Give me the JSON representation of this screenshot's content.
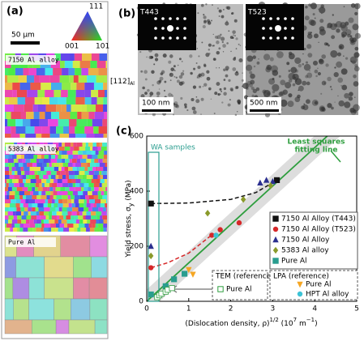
{
  "panel_a": {
    "label": "(a)",
    "ipf": {
      "top": "111",
      "left": "001",
      "right": "101"
    },
    "scale_bar": "50 μm",
    "maps": [
      "7150 Al alloy",
      "5383 Al alloy",
      "Pure Al"
    ]
  },
  "panel_b": {
    "label": "(b)",
    "zone_axis": "[112]",
    "zone_axis_sub": "Al",
    "images": [
      {
        "inset": "T443",
        "scale_bar": "100 nm"
      },
      {
        "inset": "T523",
        "scale_bar": "500 nm"
      }
    ]
  },
  "chart_data": {
    "type": "scatter",
    "panel_label": "(c)",
    "ylabel": [
      "Yield stress, σ",
      "y",
      " (MPa)"
    ],
    "xlabel": [
      "(Dislocation density, ρ)",
      "1/2",
      " (10",
      "7",
      " m",
      "−1",
      ")"
    ],
    "xlim": [
      0,
      5
    ],
    "xticks": [
      0,
      1,
      2,
      3,
      4,
      5
    ],
    "ylim": [
      0,
      600
    ],
    "yticks": [
      0,
      200,
      400,
      600
    ],
    "annotation": "WA samples",
    "fit_line": {
      "label": [
        "Least squares",
        "fitting line"
      ],
      "color": "#2e9e3e",
      "x": [
        0,
        4.3
      ],
      "y": [
        0,
        600
      ]
    },
    "curves": [
      {
        "color": "#111111",
        "x": [
          0.1,
          1,
          2,
          2.6,
          3.1
        ],
        "y": [
          355,
          357,
          370,
          395,
          440
        ]
      },
      {
        "color": "#d62728",
        "x": [
          0.1,
          0.5,
          1.0,
          1.5
        ],
        "y": [
          122,
          140,
          175,
          235
        ]
      }
    ],
    "legend_groups": [
      {
        "series": [
          {
            "name": "7150 Al Alloy (T443)",
            "color": "#111111",
            "marker": "square",
            "x": [
              0.1,
              3.1
            ],
            "y": [
              355,
              440
            ]
          },
          {
            "name": "7150 Al Alloy (T523)",
            "color": "#d62728",
            "marker": "circle",
            "x": [
              0.1,
              1.55,
              1.75,
              2.2
            ],
            "y": [
              122,
              240,
              260,
              285
            ]
          },
          {
            "name": "7150 Al Alloy",
            "color": "#2b2f8f",
            "marker": "triangle",
            "x": [
              0.1,
              2.7,
              2.85,
              3.0
            ],
            "y": [
              200,
              430,
              440,
              435
            ]
          },
          {
            "name": "5383 Al alloy",
            "color": "#8a9a2a",
            "marker": "diamond",
            "x": [
              0.1,
              1.45,
              2.3,
              2.95
            ],
            "y": [
              165,
              320,
              370,
              420
            ]
          },
          {
            "name": "Pure Al",
            "color": "#2a9d8f",
            "marker": "square",
            "x": [
              0.1,
              0.45,
              0.65,
              0.9
            ],
            "y": [
              25,
              55,
              80,
              100
            ]
          }
        ]
      },
      {
        "title": "TEM (reference)",
        "series": [
          {
            "name": "Pure Al",
            "color": "#2e9e3e",
            "marker": "open-square",
            "x": [
              0.25,
              0.3,
              0.35,
              0.45,
              0.5,
              0.6
            ],
            "y": [
              15,
              22,
              28,
              35,
              42,
              48
            ]
          }
        ]
      },
      {
        "title": "LPA (reference)",
        "series": [
          {
            "name": "Pure Al",
            "color": "#f5a623",
            "marker": "triangle-down",
            "x": [
              1.0,
              1.1
            ],
            "y": [
              115,
              98
            ]
          },
          {
            "name": "HPT  Al alloy",
            "color": "#3cc3d6",
            "marker": "circle",
            "x": [
              1.65
            ],
            "y": [
              240
            ]
          }
        ]
      }
    ]
  }
}
